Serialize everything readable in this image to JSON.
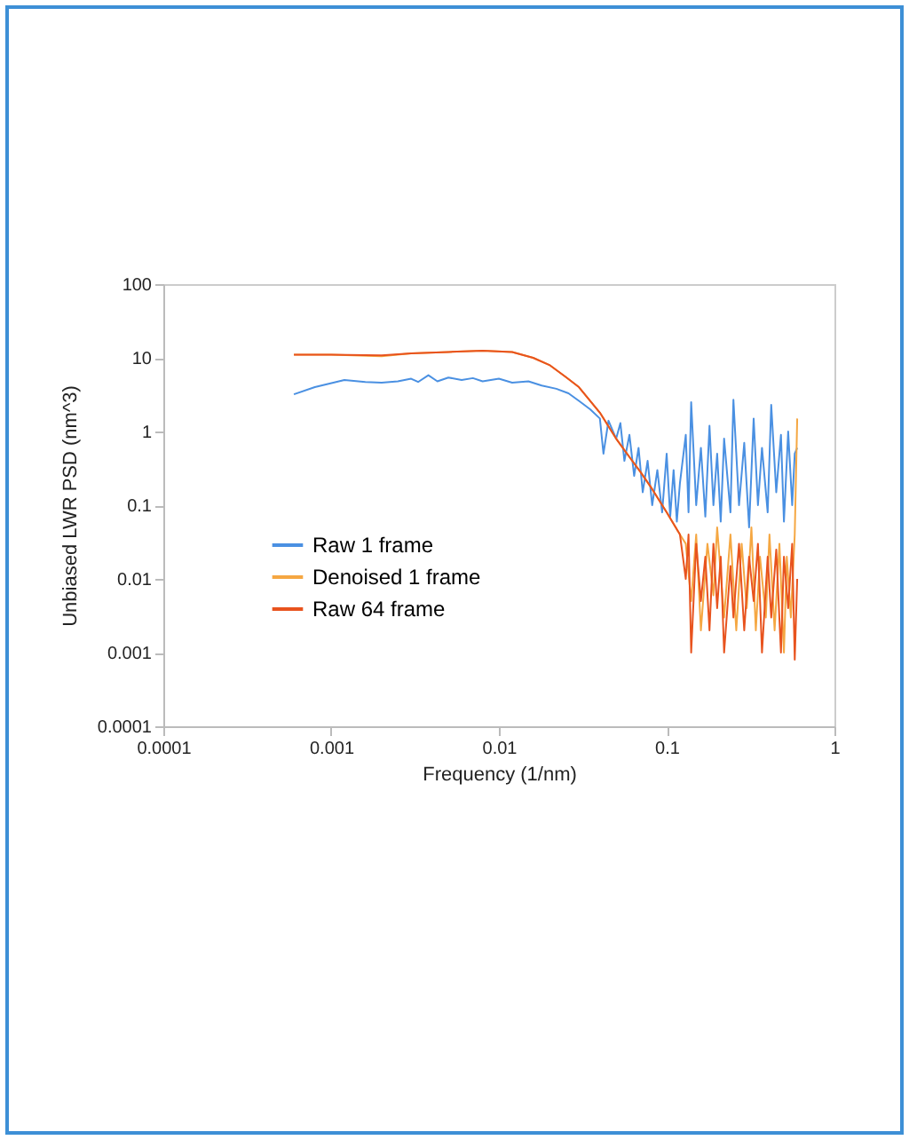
{
  "chart_data": {
    "type": "line",
    "xlabel": "Frequency (1/nm)",
    "ylabel": "Unbiased LWR PSD (nm^3)",
    "log": "xy",
    "grid": false,
    "legend": "bottom left",
    "xlim": [
      0.0001,
      1
    ],
    "xticks": [
      0.0001,
      0.001,
      0.01,
      0.1,
      1
    ],
    "ylim": [
      0.0001,
      100
    ],
    "yticks": [
      0.0001,
      0.001,
      0.01,
      0.1,
      1,
      10,
      100
    ],
    "series": [
      {
        "name": "Raw 1 frame",
        "color": "#4a90e2",
        "x": [
          0.0006,
          0.0008,
          0.0012,
          0.0016,
          0.002,
          0.0025,
          0.003,
          0.0033,
          0.0038,
          0.0043,
          0.005,
          0.006,
          0.007,
          0.008,
          0.01,
          0.012,
          0.015,
          0.018,
          0.022,
          0.026,
          0.03,
          0.035,
          0.04,
          0.042,
          0.045,
          0.05,
          0.053,
          0.056,
          0.06,
          0.064,
          0.068,
          0.072,
          0.077,
          0.082,
          0.088,
          0.094,
          0.1,
          0.105,
          0.11,
          0.115,
          0.12,
          0.13,
          0.135,
          0.14,
          0.15,
          0.16,
          0.17,
          0.18,
          0.19,
          0.2,
          0.21,
          0.22,
          0.24,
          0.25,
          0.27,
          0.29,
          0.31,
          0.33,
          0.35,
          0.37,
          0.4,
          0.42,
          0.45,
          0.48,
          0.5,
          0.53,
          0.56,
          0.58,
          0.6
        ],
        "values": [
          3.2,
          4,
          5,
          4.7,
          4.6,
          4.8,
          5.2,
          4.7,
          5.8,
          4.8,
          5.4,
          5,
          5.3,
          4.8,
          5.2,
          4.6,
          4.8,
          4.2,
          3.8,
          3.3,
          2.6,
          2,
          1.5,
          0.5,
          1.4,
          0.8,
          1.3,
          0.4,
          0.9,
          0.25,
          0.6,
          0.15,
          0.4,
          0.1,
          0.3,
          0.08,
          0.5,
          0.07,
          0.3,
          0.06,
          0.2,
          0.9,
          0.08,
          2.5,
          0.1,
          0.6,
          0.07,
          1.2,
          0.1,
          0.5,
          0.06,
          0.8,
          0.08,
          2.7,
          0.1,
          0.7,
          0.05,
          1.5,
          0.1,
          0.6,
          0.08,
          2.3,
          0.15,
          0.9,
          0.06,
          1,
          0.1,
          0.5,
          0.6
        ]
      },
      {
        "name": "Denoised 1 frame",
        "color": "#f5a742",
        "x": [
          0.0006,
          0.001,
          0.002,
          0.003,
          0.005,
          0.008,
          0.012,
          0.016,
          0.02,
          0.025,
          0.03,
          0.04,
          0.05,
          0.06,
          0.07,
          0.08,
          0.1,
          0.12,
          0.13,
          0.14,
          0.15,
          0.16,
          0.175,
          0.19,
          0.2,
          0.22,
          0.24,
          0.26,
          0.28,
          0.3,
          0.32,
          0.34,
          0.36,
          0.39,
          0.41,
          0.44,
          0.47,
          0.5,
          0.52,
          0.55,
          0.58,
          0.6
        ],
        "values": [
          11,
          11,
          10.5,
          11.5,
          12,
          12.5,
          12,
          10,
          8,
          5.5,
          4,
          1.8,
          0.8,
          0.45,
          0.28,
          0.18,
          0.08,
          0.04,
          0.03,
          0.005,
          0.04,
          0.002,
          0.03,
          0.006,
          0.05,
          0.003,
          0.04,
          0.002,
          0.03,
          0.004,
          0.05,
          0.002,
          0.02,
          0.003,
          0.04,
          0.002,
          0.03,
          0.001,
          0.02,
          0.003,
          0.04,
          1.5
        ]
      },
      {
        "name": "Raw 64 frame",
        "color": "#e8531e",
        "x": [
          0.0006,
          0.001,
          0.002,
          0.003,
          0.005,
          0.008,
          0.012,
          0.016,
          0.02,
          0.025,
          0.03,
          0.04,
          0.05,
          0.06,
          0.07,
          0.08,
          0.1,
          0.12,
          0.13,
          0.135,
          0.14,
          0.15,
          0.16,
          0.17,
          0.18,
          0.19,
          0.2,
          0.21,
          0.22,
          0.24,
          0.25,
          0.27,
          0.29,
          0.31,
          0.33,
          0.35,
          0.37,
          0.4,
          0.42,
          0.45,
          0.48,
          0.5,
          0.53,
          0.56,
          0.58,
          0.6
        ],
        "values": [
          11,
          11,
          10.8,
          11.5,
          12,
          12.5,
          12,
          10,
          8,
          5.5,
          4,
          1.8,
          0.8,
          0.45,
          0.28,
          0.18,
          0.08,
          0.04,
          0.01,
          0.04,
          0.001,
          0.03,
          0.005,
          0.02,
          0.002,
          0.03,
          0.004,
          0.02,
          0.001,
          0.015,
          0.003,
          0.03,
          0.002,
          0.02,
          0.005,
          0.03,
          0.001,
          0.02,
          0.003,
          0.025,
          0.001,
          0.02,
          0.004,
          0.03,
          0.0008,
          0.01
        ]
      }
    ]
  }
}
